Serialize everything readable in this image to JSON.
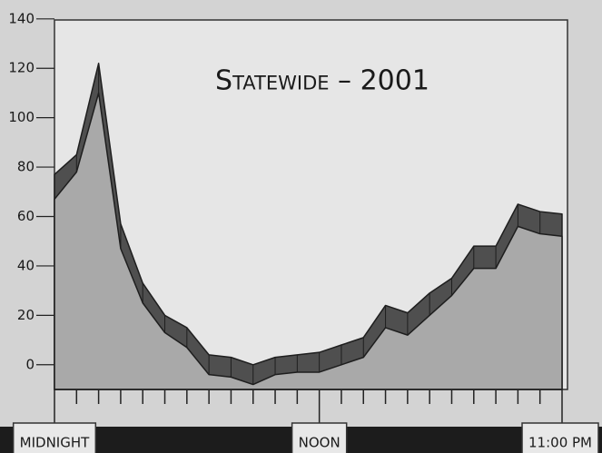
{
  "chart_data": {
    "type": "area",
    "title": "Statewide – 2001",
    "categories": [
      "MIDNIGHT",
      null,
      null,
      null,
      null,
      null,
      null,
      null,
      null,
      null,
      null,
      null,
      "NOON",
      null,
      null,
      null,
      null,
      null,
      null,
      null,
      null,
      null,
      null,
      "11:00 PM"
    ],
    "series": [
      {
        "color": "#a9a9a9",
        "values": [
          67,
          78,
          110,
          47,
          25,
          13,
          7,
          -4,
          -5,
          -8,
          -4,
          -3,
          -3,
          0,
          3,
          15,
          12,
          20,
          28,
          39,
          39,
          56,
          53,
          52
        ]
      },
      {
        "color": "#4f4f4f",
        "values": [
          77,
          85,
          122,
          57,
          33,
          20,
          15,
          4,
          3,
          0,
          3,
          4,
          5,
          8,
          11,
          24,
          21,
          29,
          35,
          48,
          48,
          65,
          62,
          61
        ]
      }
    ],
    "ylim": [
      -10,
      140
    ],
    "yticks": [
      0,
      20,
      40,
      60,
      80,
      100,
      120,
      140
    ]
  }
}
